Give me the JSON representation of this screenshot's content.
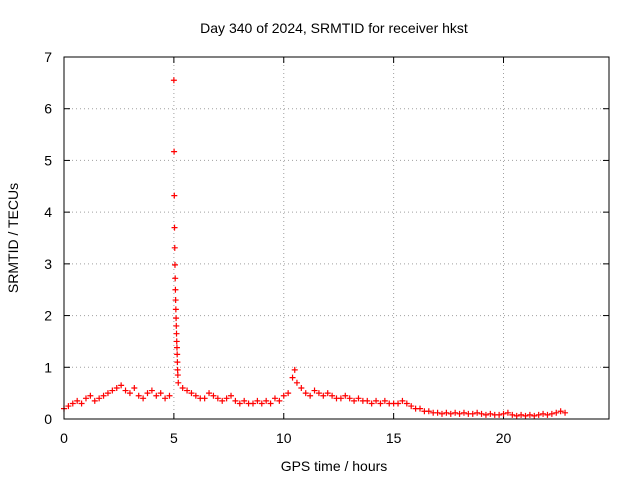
{
  "chart_data": {
    "type": "scatter",
    "title": "Day 340 of 2024, SRMTID for receiver hkst",
    "xlabel": "GPS time / hours",
    "ylabel": "SRMTID / TECUs",
    "xlim": [
      0,
      24.8
    ],
    "ylim": [
      0,
      7
    ],
    "xticks": [
      0,
      5,
      10,
      15,
      20
    ],
    "yticks": [
      0,
      1,
      2,
      3,
      4,
      5,
      6,
      7
    ],
    "grid": true,
    "marker": "+",
    "series": [
      {
        "name": "SRMTID",
        "color": "#ff0000",
        "x": [
          0.0,
          0.2,
          0.4,
          0.6,
          0.8,
          1.0,
          1.2,
          1.4,
          1.6,
          1.8,
          2.0,
          2.2,
          2.4,
          2.6,
          2.8,
          3.0,
          3.2,
          3.4,
          3.6,
          3.8,
          4.0,
          4.2,
          4.4,
          4.6,
          4.8,
          5.0,
          5.01,
          5.02,
          5.03,
          5.04,
          5.05,
          5.06,
          5.07,
          5.08,
          5.09,
          5.1,
          5.11,
          5.12,
          5.13,
          5.14,
          5.15,
          5.16,
          5.17,
          5.18,
          5.2,
          5.4,
          5.6,
          5.8,
          6.0,
          6.2,
          6.4,
          6.6,
          6.8,
          7.0,
          7.2,
          7.4,
          7.6,
          7.8,
          8.0,
          8.2,
          8.4,
          8.6,
          8.8,
          9.0,
          9.2,
          9.4,
          9.6,
          9.8,
          10.0,
          10.2,
          10.4,
          10.5,
          10.6,
          10.8,
          11.0,
          11.2,
          11.4,
          11.6,
          11.8,
          12.0,
          12.2,
          12.4,
          12.6,
          12.8,
          13.0,
          13.2,
          13.4,
          13.6,
          13.8,
          14.0,
          14.2,
          14.4,
          14.6,
          14.8,
          15.0,
          15.2,
          15.4,
          15.6,
          15.8,
          16.0,
          16.2,
          16.4,
          16.6,
          16.8,
          17.0,
          17.2,
          17.4,
          17.6,
          17.8,
          18.0,
          18.2,
          18.4,
          18.6,
          18.8,
          19.0,
          19.2,
          19.4,
          19.6,
          19.8,
          20.0,
          20.2,
          20.4,
          20.6,
          20.8,
          21.0,
          21.2,
          21.4,
          21.6,
          21.8,
          22.0,
          22.2,
          22.4,
          22.6,
          22.8
        ],
        "y": [
          0.2,
          0.25,
          0.3,
          0.35,
          0.3,
          0.4,
          0.45,
          0.35,
          0.4,
          0.45,
          0.5,
          0.55,
          0.6,
          0.65,
          0.55,
          0.5,
          0.6,
          0.45,
          0.4,
          0.5,
          0.55,
          0.45,
          0.5,
          0.4,
          0.45,
          6.55,
          5.17,
          4.32,
          3.7,
          3.31,
          2.98,
          2.72,
          2.5,
          2.3,
          2.12,
          1.95,
          1.8,
          1.65,
          1.5,
          1.38,
          1.25,
          1.1,
          0.95,
          0.85,
          0.7,
          0.6,
          0.55,
          0.5,
          0.45,
          0.4,
          0.4,
          0.5,
          0.45,
          0.4,
          0.35,
          0.4,
          0.45,
          0.35,
          0.3,
          0.35,
          0.3,
          0.3,
          0.35,
          0.3,
          0.35,
          0.3,
          0.4,
          0.35,
          0.45,
          0.5,
          0.8,
          0.95,
          0.7,
          0.6,
          0.5,
          0.45,
          0.55,
          0.5,
          0.45,
          0.5,
          0.45,
          0.4,
          0.4,
          0.45,
          0.4,
          0.35,
          0.4,
          0.35,
          0.35,
          0.3,
          0.35,
          0.3,
          0.35,
          0.3,
          0.3,
          0.3,
          0.35,
          0.3,
          0.25,
          0.2,
          0.2,
          0.15,
          0.15,
          0.12,
          0.12,
          0.1,
          0.12,
          0.1,
          0.12,
          0.1,
          0.12,
          0.1,
          0.1,
          0.12,
          0.1,
          0.08,
          0.1,
          0.08,
          0.08,
          0.1,
          0.12,
          0.08,
          0.06,
          0.08,
          0.06,
          0.08,
          0.06,
          0.08,
          0.1,
          0.08,
          0.1,
          0.12,
          0.15,
          0.12
        ]
      }
    ]
  }
}
